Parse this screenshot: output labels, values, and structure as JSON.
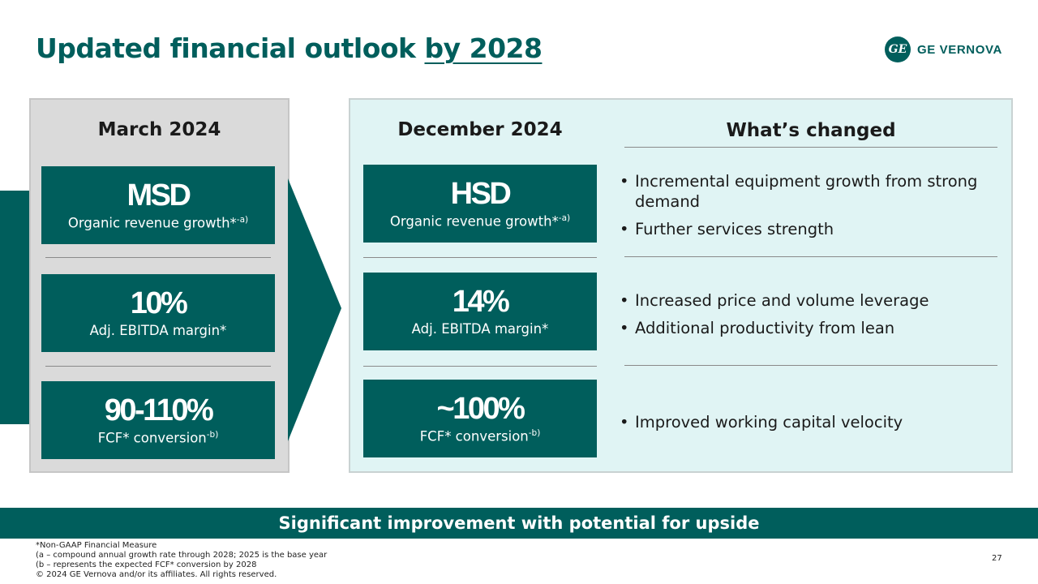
{
  "title": {
    "main": "Updated financial outlook ",
    "underlined": "by 2028"
  },
  "logo": {
    "mark": "GE",
    "text": "GE VERNOVA"
  },
  "march": {
    "heading": "March 2024",
    "metrics": [
      {
        "value": "MSD",
        "label": "Organic revenue growth*",
        "note": "-a)"
      },
      {
        "value": "10%",
        "label": "Adj. EBITDA margin*",
        "note": ""
      },
      {
        "value": "90-110%",
        "label": "FCF* conversion",
        "note": "-b)"
      }
    ]
  },
  "december": {
    "heading": "December 2024",
    "metrics": [
      {
        "value": "HSD",
        "label": "Organic revenue growth*",
        "note": "-a)"
      },
      {
        "value": "14%",
        "label": "Adj. EBITDA margin*",
        "note": ""
      },
      {
        "value": "~100%",
        "label": "FCF* conversion",
        "note": "-b)"
      }
    ]
  },
  "changes": {
    "heading": "What’s changed",
    "groups": [
      [
        "Incremental equipment growth from strong demand",
        "Further services strength"
      ],
      [
        "Increased price and volume leverage",
        "Additional productivity from lean"
      ],
      [
        "Improved working capital velocity"
      ]
    ]
  },
  "banner": "Significant improvement with potential for upside",
  "footnotes": [
    "*Non-GAAP Financial Measure",
    "(a – compound annual growth rate through 2028; 2025 is the base year",
    "(b – represents the expected FCF* conversion by 2028",
    "© 2024 GE Vernova and/or its affiliates. All rights reserved."
  ],
  "page_number": "27",
  "colors": {
    "brand": "#005e5c",
    "dec_panel": "#e0f4f4",
    "march_panel": "#dadada"
  }
}
